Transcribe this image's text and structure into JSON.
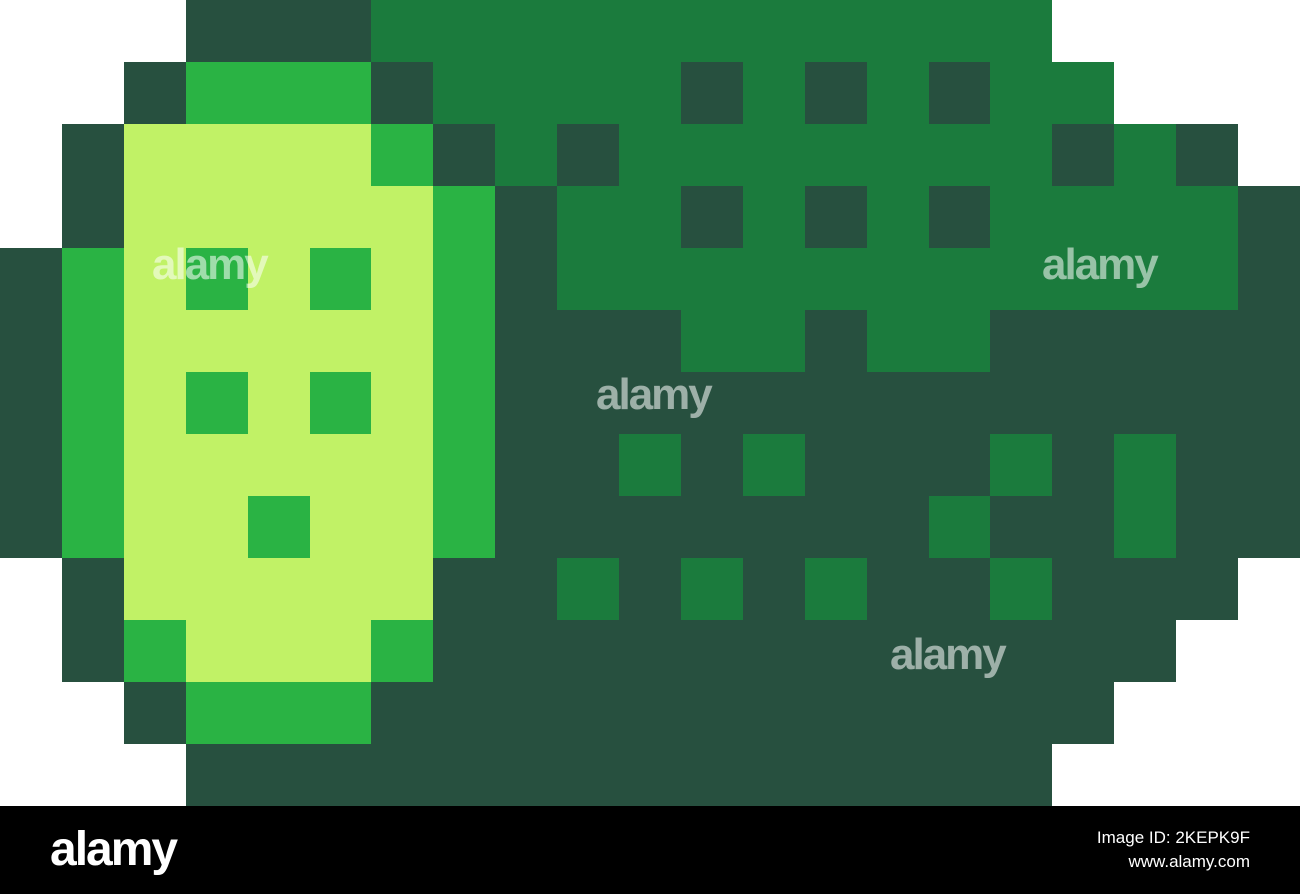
{
  "palette": {
    "W": "#ffffff",
    "D": "#27503f",
    "M": "#1b7b3d",
    "B": "#2ab344",
    "L": "#c1f266"
  },
  "pixel_rows": [
    "WWWDDDMMMMMMMMMMMWWWW",
    "WWDBBBDMMMMDMDMDMMWWW",
    "WDLLLLBDMDMMMMMMMDMDW",
    "WDLLLLLBDMMDMDMDMMMMD",
    "DBLBLBLBDMMMMMMMMMMMD",
    "DBLLLLLBDDDMMDMMDDDDD",
    "DBLBLBLBDDDDDDDDDDDDD",
    "DBLLLLLBDDMDMDDDMDMDD",
    "DBLLBLLBDDDDDDDMDDMDD",
    "WDLLLLLDDMDMDMDDMDDDW",
    "WDBLLLBDDDDDDDDDDDDWW",
    "WWDBBBDDDDDDDDDDDDWWW",
    "WWWDDDDDDDDDDDDDDWWWW"
  ],
  "watermark": {
    "text": "alamy",
    "image_id": "Image ID: 2KEPK9F",
    "site": "www.alamy.com"
  }
}
